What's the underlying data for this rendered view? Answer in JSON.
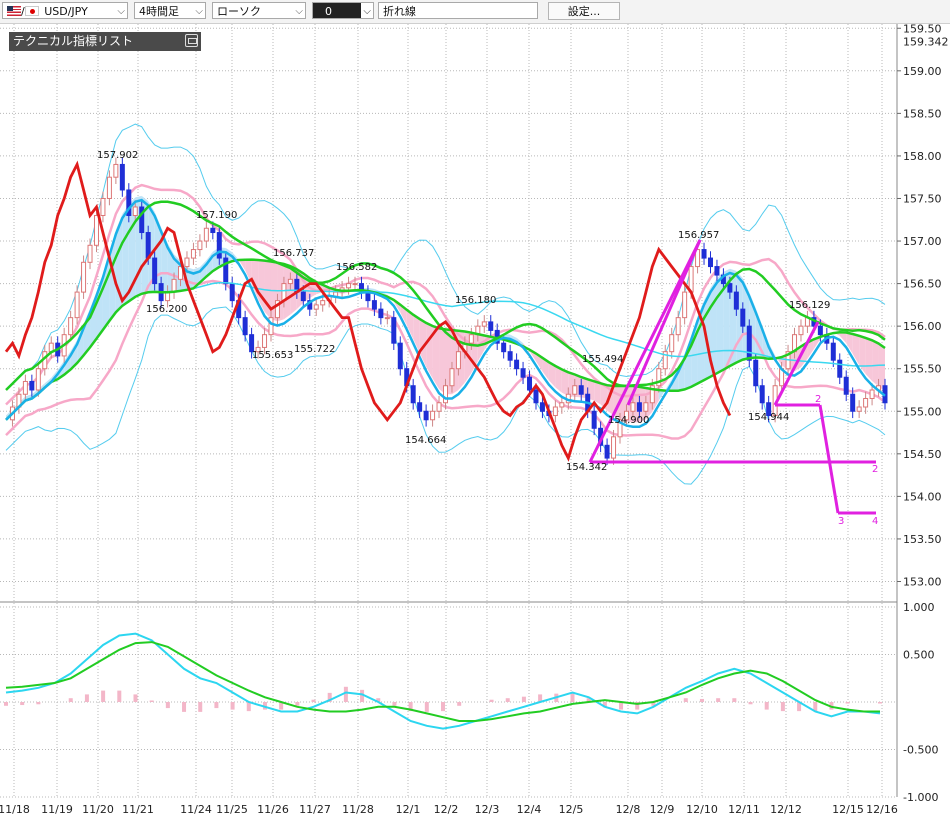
{
  "toolbar": {
    "symbol": "USD/JPY",
    "flags_separator": "/",
    "timeframe": "4時間足",
    "chart_style": "ローソク",
    "tool_value": "0",
    "line_type": "折れ線",
    "settings_label": "設定..."
  },
  "panel": {
    "title": "テクニカル指標リスト"
  },
  "colors": {
    "bull": "#e8a0a0",
    "bear": "#1f2fd6",
    "tenkan": "#e01b1b",
    "kijun_green": "#22cc22",
    "ma_cyan": "#1ab0e8",
    "bollinger_pink": "#f7a8c8",
    "bollinger_blue": "#55ccee",
    "trend_magenta": "#e020e0",
    "kumo_blue": "#bfe3f7",
    "kumo_pink": "#f7c7d9"
  },
  "chart_data": {
    "type": "candlestick",
    "symbol": "USD/JPY",
    "timeframe": "4時間足",
    "price_axis": {
      "ticks": [
        153.0,
        153.5,
        154.0,
        154.5,
        155.0,
        155.5,
        156.0,
        156.5,
        157.0,
        157.5,
        158.0,
        158.5,
        159.0,
        159.5
      ],
      "tick_labels": [
        "153.00",
        "153.50",
        "154.00",
        "154.50",
        "155.00",
        "155.50",
        "156.00",
        "156.50",
        "157.00",
        "157.50",
        "158.00",
        "158.50",
        "159.00",
        "159.50"
      ],
      "current_label": "159.342",
      "ylim": [
        152.9,
        159.5
      ]
    },
    "osc_axis": {
      "ticks": [
        1.0,
        0.5,
        -0.5,
        -1.0
      ],
      "tick_labels": [
        "1.000",
        "0.500",
        "-0.500",
        "-1.000"
      ],
      "ylim": [
        -1.0,
        1.0
      ]
    },
    "date_labels": [
      "11/18",
      "11/19",
      "11/20",
      "11/21",
      "11/24",
      "11/25",
      "11/26",
      "11/27",
      "11/28",
      "12/1",
      "12/2",
      "12/3",
      "12/4",
      "12/5",
      "12/8",
      "12/9",
      "12/10",
      "12/11",
      "12/12",
      "12/15",
      "12/16"
    ],
    "annotations": [
      {
        "text": "157.902",
        "at": 157.9
      },
      {
        "text": "157.190",
        "at": 157.19
      },
      {
        "text": "156.737",
        "at": 156.737
      },
      {
        "text": "156.582",
        "at": 156.582
      },
      {
        "text": "156.200",
        "at": 156.2
      },
      {
        "text": "156.180",
        "at": 156.18
      },
      {
        "text": "155.653",
        "at": 155.653
      },
      {
        "text": "155.722",
        "at": 155.722
      },
      {
        "text": "155.494",
        "at": 155.494
      },
      {
        "text": "154.664",
        "at": 154.664
      },
      {
        "text": "154.900",
        "at": 154.9
      },
      {
        "text": "154.342",
        "at": 154.342
      },
      {
        "text": "156.957",
        "at": 156.957
      },
      {
        "text": "156.129",
        "at": 156.129
      },
      {
        "text": "154.944",
        "at": 154.944
      }
    ],
    "wave_labels": [
      "2",
      "2",
      "3",
      "4"
    ],
    "close": [
      154.9,
      155.05,
      155.2,
      155.35,
      155.25,
      155.5,
      155.7,
      155.8,
      155.65,
      155.9,
      156.1,
      156.4,
      156.75,
      156.95,
      157.3,
      157.5,
      157.75,
      157.9,
      157.6,
      157.3,
      157.4,
      157.1,
      156.8,
      156.5,
      156.3,
      156.4,
      156.55,
      156.7,
      156.8,
      156.9,
      157.0,
      157.15,
      157.1,
      156.8,
      156.5,
      156.3,
      156.1,
      155.9,
      155.7,
      155.75,
      155.9,
      156.1,
      156.3,
      156.5,
      156.55,
      156.4,
      156.3,
      156.2,
      156.25,
      156.3,
      156.35,
      156.4,
      156.45,
      156.5,
      156.5,
      156.4,
      156.3,
      156.2,
      156.1,
      156.1,
      155.8,
      155.5,
      155.3,
      155.1,
      155.0,
      154.9,
      155.0,
      155.1,
      155.3,
      155.5,
      155.7,
      155.8,
      155.9,
      156.0,
      156.05,
      155.95,
      155.8,
      155.7,
      155.6,
      155.5,
      155.4,
      155.25,
      155.1,
      155.0,
      154.95,
      155.05,
      155.1,
      155.2,
      155.3,
      155.2,
      155.0,
      154.8,
      154.6,
      154.45,
      154.7,
      154.9,
      155.0,
      155.1,
      155.0,
      155.1,
      155.3,
      155.5,
      155.7,
      155.9,
      156.1,
      156.4,
      156.7,
      156.9,
      156.8,
      156.7,
      156.6,
      156.5,
      156.4,
      156.2,
      156.0,
      155.6,
      155.3,
      155.1,
      154.95,
      155.3,
      155.5,
      155.7,
      155.9,
      156.0,
      156.1,
      156.0,
      155.9,
      155.8,
      155.6,
      155.4,
      155.2,
      155.0,
      155.05,
      155.15,
      155.25,
      155.3,
      155.1
    ],
    "oscillator": {
      "macd": [
        0.1,
        0.12,
        0.15,
        0.2,
        0.3,
        0.45,
        0.6,
        0.7,
        0.72,
        0.65,
        0.5,
        0.35,
        0.25,
        0.2,
        0.1,
        0.0,
        -0.05,
        -0.1,
        -0.1,
        -0.05,
        0.02,
        0.1,
        0.08,
        0.0,
        -0.1,
        -0.2,
        -0.25,
        -0.28,
        -0.25,
        -0.2,
        -0.15,
        -0.1,
        -0.05,
        0.0,
        0.05,
        0.1,
        0.05,
        -0.05,
        -0.1,
        -0.12,
        -0.05,
        0.05,
        0.15,
        0.22,
        0.3,
        0.35,
        0.3,
        0.2,
        0.1,
        0.0,
        -0.1,
        -0.15,
        -0.1,
        -0.1,
        -0.12
      ],
      "signal": [
        0.15,
        0.16,
        0.18,
        0.2,
        0.25,
        0.35,
        0.45,
        0.55,
        0.62,
        0.63,
        0.58,
        0.48,
        0.38,
        0.28,
        0.2,
        0.12,
        0.05,
        0.0,
        -0.05,
        -0.08,
        -0.1,
        -0.1,
        -0.08,
        -0.05,
        -0.05,
        -0.08,
        -0.12,
        -0.16,
        -0.2,
        -0.2,
        -0.18,
        -0.15,
        -0.12,
        -0.1,
        -0.06,
        -0.02,
        0.0,
        0.02,
        0.0,
        -0.02,
        0.0,
        0.05,
        0.1,
        0.18,
        0.25,
        0.3,
        0.33,
        0.3,
        0.22,
        0.12,
        0.02,
        -0.05,
        -0.08,
        -0.1,
        -0.1
      ]
    }
  }
}
